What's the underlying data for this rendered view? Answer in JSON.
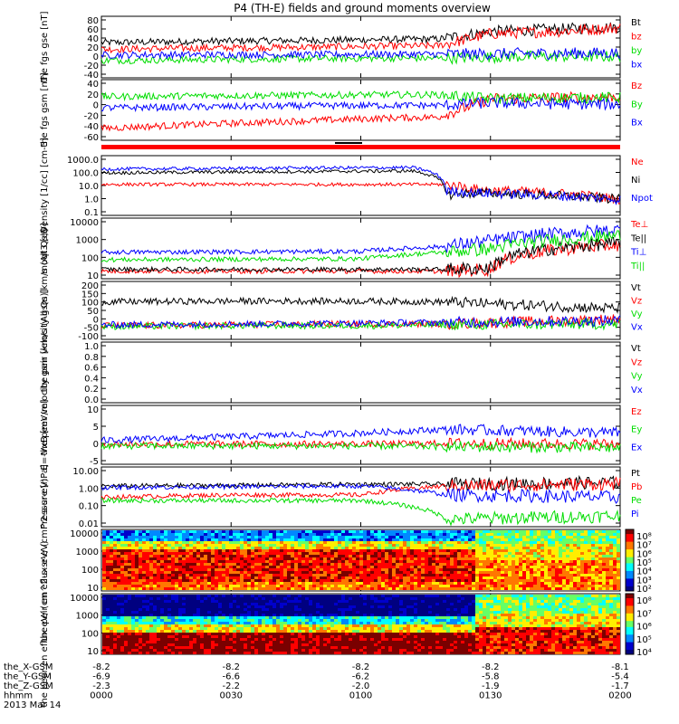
{
  "title": "P4 (TH-E) fields and ground moments overview",
  "colors": {
    "black": "#000000",
    "red": "#ff0000",
    "green": "#00dd00",
    "blue": "#0000ff"
  },
  "chart_data": [
    {
      "type": "line",
      "ylabel": "the fgs gse [nT]",
      "yticks": [
        "80",
        "60",
        "40",
        "20",
        "0",
        "-20",
        "-40"
      ],
      "ylim": [
        -45,
        85
      ],
      "series": [
        {
          "name": "Bt",
          "color": "black",
          "x": [
            0,
            40,
            80,
            110,
            130,
            150,
            175,
            200
          ],
          "values": [
            30,
            33,
            35,
            37,
            38,
            55,
            60,
            65
          ]
        },
        {
          "name": "bz",
          "color": "red",
          "x": [
            0,
            40,
            80,
            110,
            130,
            150,
            175,
            200
          ],
          "values": [
            15,
            18,
            20,
            22,
            23,
            50,
            55,
            63
          ]
        },
        {
          "name": "by",
          "color": "green",
          "x": [
            0,
            40,
            80,
            110,
            130,
            150,
            175,
            200
          ],
          "values": [
            -10,
            -8,
            -6,
            -5,
            -5,
            -2,
            -1,
            -1
          ]
        },
        {
          "name": "bx",
          "color": "blue",
          "x": [
            0,
            40,
            80,
            110,
            130,
            150,
            175,
            200
          ],
          "values": [
            2,
            3,
            3,
            4,
            4,
            5,
            6,
            7
          ]
        }
      ]
    },
    {
      "type": "line",
      "ylabel": "the fgs gsm [nT]",
      "yticks": [
        "40",
        "20",
        "0",
        "-20",
        "-40",
        "-60"
      ],
      "ylim": [
        -70,
        42
      ],
      "series": [
        {
          "name": "Bz",
          "color": "red",
          "x": [
            0,
            40,
            80,
            110,
            130,
            150,
            175,
            200
          ],
          "values": [
            -50,
            -42,
            -35,
            -30,
            -28,
            8,
            10,
            12
          ]
        },
        {
          "name": "By",
          "color": "green",
          "x": [
            0,
            40,
            80,
            110,
            130,
            150,
            175,
            200
          ],
          "values": [
            12,
            14,
            15,
            16,
            16,
            8,
            10,
            10
          ]
        },
        {
          "name": "Bx",
          "color": "blue",
          "x": [
            0,
            40,
            80,
            110,
            130,
            150,
            175,
            200
          ],
          "values": [
            -10,
            -8,
            -6,
            -5,
            -5,
            0,
            -2,
            -3
          ]
        }
      ]
    },
    {
      "type": "line",
      "ylabel": "Density [1/cc] [cm-3]",
      "yticks": [
        "1000.0",
        "100.0",
        "10.0",
        "1.0",
        "0.1"
      ],
      "log": true,
      "ylim": [
        0.1,
        1000
      ],
      "series": [
        {
          "name": "Ne",
          "color": "red",
          "x": [
            0,
            40,
            80,
            120,
            133,
            145,
            200
          ],
          "values": [
            12,
            12,
            12,
            12,
            12,
            5,
            1
          ]
        },
        {
          "name": "Ni",
          "color": "black",
          "x": [
            0,
            40,
            80,
            120,
            133,
            145,
            200
          ],
          "values": [
            80,
            90,
            100,
            110,
            2,
            3,
            1
          ]
        },
        {
          "name": "Npot",
          "color": "blue",
          "x": [
            0,
            40,
            80,
            120,
            133,
            145,
            200
          ],
          "values": [
            150,
            160,
            180,
            190,
            4,
            3,
            1
          ]
        }
      ]
    },
    {
      "type": "line",
      "ylabel": "moqt3 [eV]",
      "yticks": [
        "10000",
        "1000",
        "100",
        "10"
      ],
      "log": true,
      "ylim": [
        10,
        10000
      ],
      "series": [
        {
          "name": "Te⊥",
          "color": "red",
          "x": [
            0,
            50,
            100,
            133,
            150,
            200
          ],
          "values": [
            20,
            20,
            20,
            20,
            25,
            500
          ]
        },
        {
          "name": "Te||",
          "color": "black",
          "x": [
            0,
            50,
            100,
            133,
            150,
            200
          ],
          "values": [
            25,
            25,
            25,
            25,
            30,
            600
          ]
        },
        {
          "name": "Ti⊥",
          "color": "blue",
          "x": [
            0,
            50,
            100,
            133,
            150,
            200
          ],
          "values": [
            200,
            210,
            220,
            400,
            800,
            3000
          ]
        },
        {
          "name": "Ti||",
          "color": "green",
          "x": [
            0,
            50,
            100,
            133,
            150,
            200
          ],
          "values": [
            80,
            85,
            90,
            200,
            300,
            1500
          ]
        }
      ]
    },
    {
      "type": "line",
      "ylabel": "the peir velocity gsm [km/s (All Qs)]",
      "yticks": [
        "200",
        "150",
        "100",
        "50",
        "0",
        "-50",
        "-100"
      ],
      "ylim": [
        -110,
        210
      ],
      "series": [
        {
          "name": "Vt",
          "color": "black",
          "x": [
            0,
            50,
            100,
            133,
            200
          ],
          "values": [
            100,
            105,
            105,
            100,
            60
          ]
        },
        {
          "name": "Vz",
          "color": "red",
          "x": [
            0,
            50,
            100,
            133,
            200
          ],
          "values": [
            -40,
            -35,
            -30,
            -30,
            0
          ]
        },
        {
          "name": "Vy",
          "color": "green",
          "x": [
            0,
            50,
            100,
            133,
            200
          ],
          "values": [
            -45,
            -40,
            -40,
            -35,
            -30
          ]
        },
        {
          "name": "Vx",
          "color": "blue",
          "x": [
            0,
            50,
            100,
            133,
            200
          ],
          "values": [
            -35,
            -30,
            -25,
            -20,
            -10
          ]
        }
      ]
    },
    {
      "type": "line",
      "ylabel": "the peer velocity gsm [km/s (All Qs)]",
      "yticks": [
        "1.0",
        "0.8",
        "0.6",
        "0.4",
        "0.2",
        "0.0"
      ],
      "ylim": [
        0,
        1
      ],
      "series": [
        {
          "name": "Vt",
          "color": "black",
          "values": []
        },
        {
          "name": "Vz",
          "color": "red",
          "values": []
        },
        {
          "name": "Vy",
          "color": "green",
          "values": []
        },
        {
          "name": "Vx",
          "color": "blue",
          "values": []
        }
      ]
    },
    {
      "type": "line",
      "ylabel": "E=-VxB [mV/m]",
      "yticks": [
        "10",
        "5",
        "0",
        "-5"
      ],
      "ylim": [
        -5,
        10
      ],
      "series": [
        {
          "name": "Ez",
          "color": "red",
          "x": [
            0,
            50,
            100,
            133,
            200
          ],
          "values": [
            0,
            0,
            0,
            0.2,
            0
          ]
        },
        {
          "name": "Ey",
          "color": "green",
          "x": [
            0,
            50,
            100,
            133,
            200
          ],
          "values": [
            -0.5,
            -0.5,
            -0.5,
            -0.7,
            -1
          ]
        },
        {
          "name": "Ex",
          "color": "blue",
          "x": [
            0,
            50,
            100,
            133,
            200
          ],
          "values": [
            1,
            2,
            3,
            4,
            3
          ]
        }
      ]
    },
    {
      "type": "line",
      "ylabel": "Pressure [nPa]",
      "yticks": [
        "10.00",
        "1.00",
        "0.10",
        "0.01"
      ],
      "log": true,
      "ylim": [
        0.01,
        10
      ],
      "series": [
        {
          "name": "Pt",
          "color": "black",
          "x": [
            0,
            50,
            100,
            133,
            200
          ],
          "values": [
            1.2,
            1.3,
            1.5,
            1.5,
            1.8
          ]
        },
        {
          "name": "Pb",
          "color": "red",
          "x": [
            0,
            50,
            100,
            133,
            200
          ],
          "values": [
            0.3,
            0.4,
            0.4,
            1.2,
            1.6
          ]
        },
        {
          "name": "Pe",
          "color": "green",
          "x": [
            0,
            50,
            100,
            133,
            200
          ],
          "values": [
            0.2,
            0.2,
            0.2,
            0.02,
            0.03
          ]
        },
        {
          "name": "Pi",
          "color": "blue",
          "x": [
            0,
            50,
            100,
            133,
            200
          ],
          "values": [
            1.0,
            1.1,
            1.2,
            0.4,
            0.3
          ]
        }
      ]
    },
    {
      "type": "heatmap",
      "ylabel": "the peir en eflux eV/ (cm^2-s-sr-eV)",
      "yticks": [
        "10000",
        "1000",
        "100",
        "10"
      ],
      "colorbar": [
        "10⁸",
        "10⁷",
        "10⁶",
        "10⁵",
        "10⁴",
        "10³",
        "10²"
      ],
      "colorbar_extra": "10⁸"
    },
    {
      "type": "heatmap",
      "ylabel": "the peer en eflux eV/ (cm^2-s-sr-eV)",
      "yticks": [
        "10000",
        "1000",
        "100",
        "10"
      ],
      "colorbar": [
        "10⁸",
        "10⁷",
        "10⁶",
        "10⁵",
        "10⁴"
      ]
    }
  ],
  "xaxis": {
    "labels_rows": [
      {
        "name": "the_X-GSM",
        "values": [
          "-8.2",
          "-8.2",
          "-8.2",
          "-8.2",
          "-8.1"
        ]
      },
      {
        "name": "the_Y-GSM",
        "values": [
          "-6.9",
          "-6.6",
          "-6.2",
          "-5.8",
          "-5.4"
        ]
      },
      {
        "name": "the_Z-GSM",
        "values": [
          "-2.3",
          "-2.2",
          "-2.0",
          "-1.9",
          "-1.7"
        ]
      },
      {
        "name": "hhmm",
        "values": [
          "0000",
          "0030",
          "0100",
          "0130",
          "0200"
        ]
      }
    ],
    "date": "2013 Mar 14"
  }
}
